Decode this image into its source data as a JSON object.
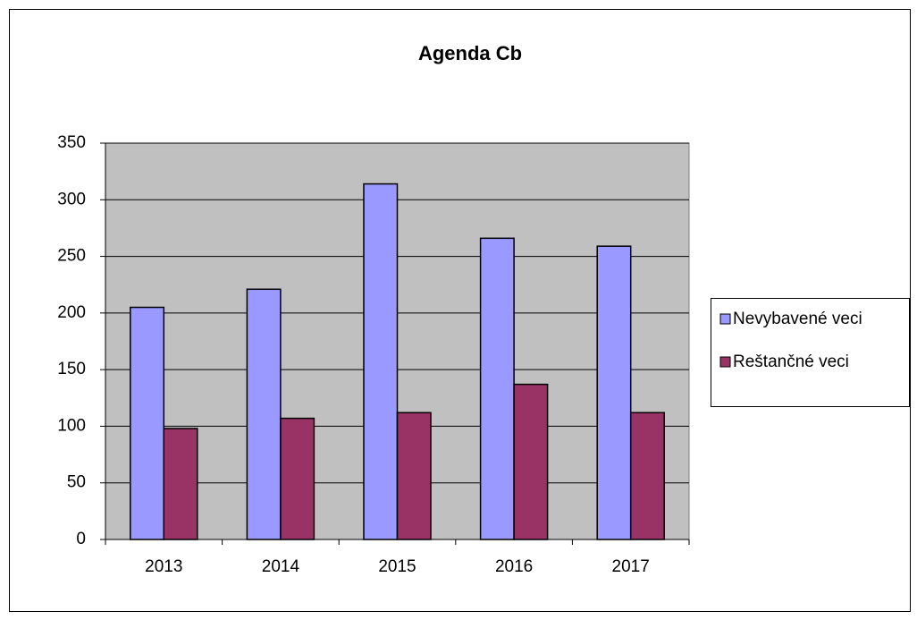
{
  "chart_data": {
    "type": "bar",
    "title": "Agenda Cb",
    "categories": [
      "2013",
      "2014",
      "2015",
      "2016",
      "2017"
    ],
    "series": [
      {
        "name": "Nevybavené veci",
        "color": "#9999ff",
        "values": [
          205,
          221,
          314,
          266,
          259
        ]
      },
      {
        "name": "Reštančné veci",
        "color": "#993366",
        "values": [
          98,
          107,
          112,
          137,
          112
        ]
      }
    ],
    "ylim": [
      0,
      350
    ],
    "yticks": [
      0,
      50,
      100,
      150,
      200,
      250,
      300,
      350
    ],
    "grid": true,
    "legend": "right",
    "plot_background": "#c0c0c0"
  }
}
